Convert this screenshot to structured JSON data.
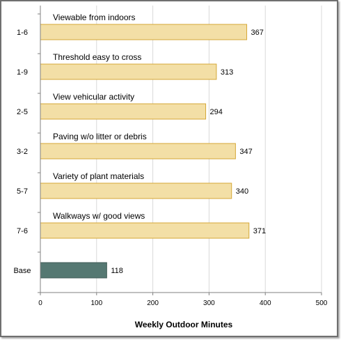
{
  "chart_data": {
    "type": "bar",
    "orientation": "horizontal",
    "categories": [
      "1-6",
      "1-9",
      "2-5",
      "3-2",
      "5-7",
      "7-6",
      "Base"
    ],
    "descriptions": [
      "Viewable from indoors",
      "Threshold easy to cross",
      "View vehicular activity",
      "Paving w/o litter or debris",
      "Variety of plant materials",
      "Walkways w/ good views",
      ""
    ],
    "values": [
      367,
      313,
      294,
      347,
      340,
      371,
      118
    ],
    "value_labels": [
      "367",
      "313",
      "294",
      "347",
      "340",
      "371",
      "118"
    ],
    "xlabel": "Weekly Outdoor Minutes",
    "ylabel": "",
    "xlim": [
      0,
      500
    ],
    "xticks": [
      0,
      100,
      200,
      300,
      400,
      500
    ],
    "xtick_labels": [
      "0",
      "100",
      "200",
      "300",
      "400",
      "500"
    ],
    "grid": "vertical",
    "colors": {
      "bar_fill": "#F3DFA6",
      "bar_border": "#D4A737",
      "base_fill": "#557872",
      "base_border": "#3E5A55",
      "gridline": "#D9D9D9",
      "axis": "#808080",
      "text": "#000000"
    }
  }
}
